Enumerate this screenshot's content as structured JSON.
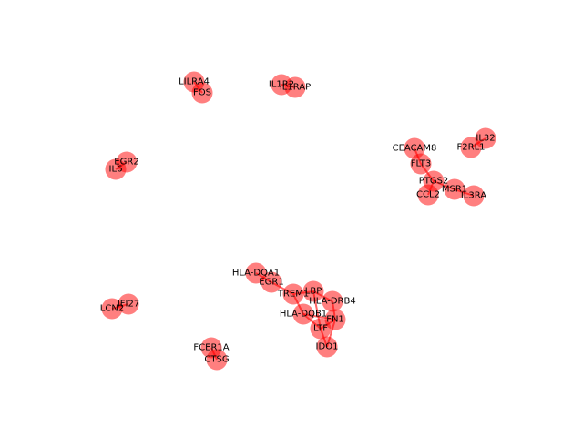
{
  "network": {
    "colors": {
      "node": "#ff0000",
      "edge": "#ff0000",
      "label": "#000000",
      "background": "#ffffff"
    },
    "nodes": [
      {
        "id": "LILRA4",
        "label": "LILRA4"
      },
      {
        "id": "FOS",
        "label": "FOS"
      },
      {
        "id": "IL1R2",
        "label": "IL1R2"
      },
      {
        "id": "IL1RAP",
        "label": "IL1RAP"
      },
      {
        "id": "CEACAM8",
        "label": "CEACAM8"
      },
      {
        "id": "IL32",
        "label": "IL32"
      },
      {
        "id": "F2RL1",
        "label": "F2RL1"
      },
      {
        "id": "FLT3",
        "label": "FLT3"
      },
      {
        "id": "PTGS2",
        "label": "PTGS2"
      },
      {
        "id": "MSR1",
        "label": "MSR1"
      },
      {
        "id": "CCL2",
        "label": "CCL2"
      },
      {
        "id": "IL3RA",
        "label": "IL3RA"
      },
      {
        "id": "EGR2",
        "label": "EGR2"
      },
      {
        "id": "IL6",
        "label": "IL6"
      },
      {
        "id": "HLA-DQA1",
        "label": "HLA-DQA1"
      },
      {
        "id": "EGR1",
        "label": "EGR1"
      },
      {
        "id": "LBP",
        "label": "LBP"
      },
      {
        "id": "TREM1",
        "label": "TREM1"
      },
      {
        "id": "HLA-DRB4",
        "label": "HLA-DRB4"
      },
      {
        "id": "HLA-DQB1",
        "label": "HLA-DQB1"
      },
      {
        "id": "FN1",
        "label": "FN1"
      },
      {
        "id": "LTF",
        "label": "LTF"
      },
      {
        "id": "IDO1",
        "label": "IDO1"
      },
      {
        "id": "IFI27",
        "label": "IFI27"
      },
      {
        "id": "LCN2",
        "label": "LCN2"
      },
      {
        "id": "FCER1A",
        "label": "FCER1A"
      },
      {
        "id": "CTSG",
        "label": "CTSG"
      }
    ],
    "edges": [
      [
        "LILRA4",
        "FOS"
      ],
      [
        "IL1R2",
        "IL1RAP"
      ],
      [
        "IL32",
        "F2RL1"
      ],
      [
        "CEACAM8",
        "FLT3"
      ],
      [
        "FLT3",
        "PTGS2"
      ],
      [
        "PTGS2",
        "CCL2"
      ],
      [
        "PTGS2",
        "MSR1"
      ],
      [
        "MSR1",
        "IL3RA"
      ],
      [
        "EGR2",
        "IL6"
      ],
      [
        "HLA-DQA1",
        "EGR1"
      ],
      [
        "EGR1",
        "TREM1"
      ],
      [
        "TREM1",
        "LBP"
      ],
      [
        "TREM1",
        "HLA-DQB1"
      ],
      [
        "LBP",
        "LTF"
      ],
      [
        "LBP",
        "HLA-DRB4"
      ],
      [
        "HLA-DRB4",
        "FN1"
      ],
      [
        "HLA-DQB1",
        "LTF"
      ],
      [
        "HLA-DQB1",
        "FN1"
      ],
      [
        "LTF",
        "FN1"
      ],
      [
        "LTF",
        "IDO1"
      ],
      [
        "FN1",
        "IDO1"
      ],
      [
        "IFI27",
        "LCN2"
      ],
      [
        "FCER1A",
        "CTSG"
      ]
    ]
  }
}
